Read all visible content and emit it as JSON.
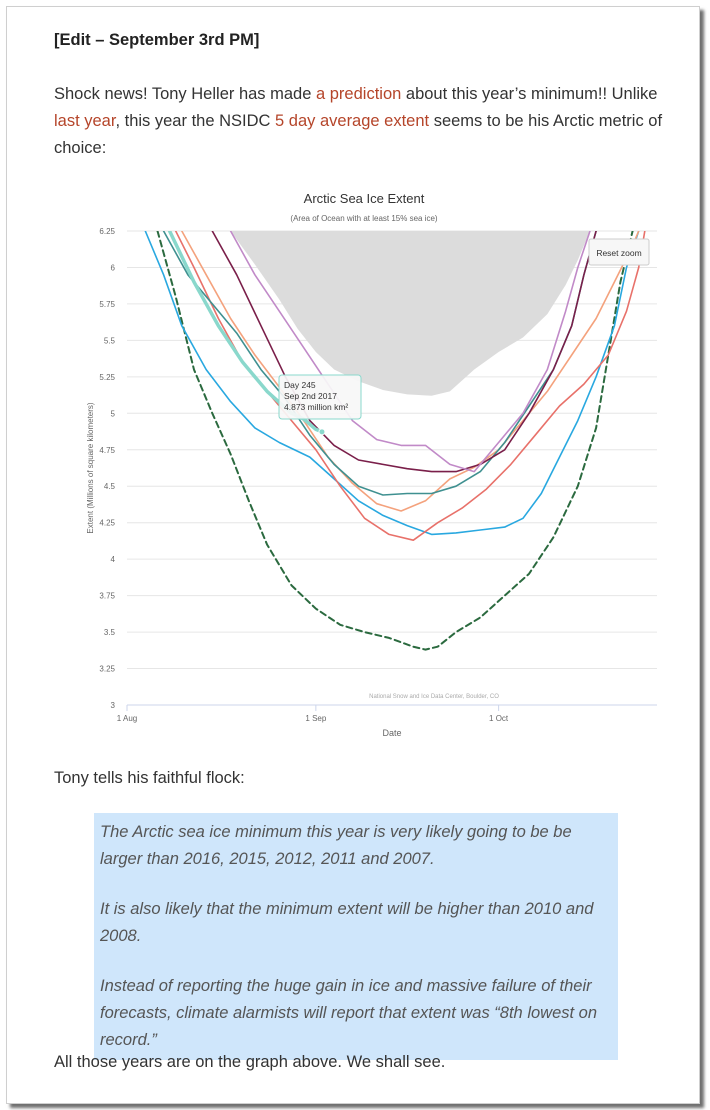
{
  "post": {
    "heading": "[Edit – September 3rd PM]",
    "p1_a": "Shock news! Tony Heller has made ",
    "p1_link1": "a prediction",
    "p1_b": " about this year’s minimum!! Unlike ",
    "p1_link2": "last year",
    "p1_c": ", this year the NSIDC ",
    "p1_link3": "5 day average extent",
    "p1_d": " seems to be his Arctic metric of choice:",
    "p2": "Tony tells his faithful flock:",
    "quote": [
      "The Arctic sea ice minimum this year is very likely going to be be larger than 2016, 2015, 2012, 2011 and 2007.",
      "It is also likely that the minimum extent will be higher than 2010 and 2008.",
      "Instead of reporting the huge gain in ice and massive failure of their forecasts, climate alarmists will report that extent was “8th lowest on record.”"
    ],
    "p3": "All those years are on the graph above. We shall see."
  },
  "colors": {
    "link": "#b5452a",
    "quote_bg": "#cfe6fb"
  },
  "chart_data": {
    "type": "line",
    "title": "Arctic Sea Ice Extent",
    "subtitle": "(Area of Ocean with at least 15% sea ice)",
    "ylabel": "Extent (Millions of square kilometers)",
    "xlabel": "Date",
    "credit": "National Snow and Ice Data Center, Boulder, CO",
    "reset_label": "Reset zoom",
    "x_ticks": [
      {
        "day": 213,
        "label": "1 Aug"
      },
      {
        "day": 244,
        "label": "1 Sep"
      },
      {
        "day": 274,
        "label": "1 Oct"
      }
    ],
    "xlim": [
      213,
      300
    ],
    "ylim": [
      3,
      6.25
    ],
    "y_ticks": [
      {
        "v": 3,
        "label": "3"
      },
      {
        "v": 3.25,
        "label": "3.25"
      },
      {
        "v": 3.5,
        "label": "3.5"
      },
      {
        "v": 3.75,
        "label": "3.75"
      },
      {
        "v": 4,
        "label": "4"
      },
      {
        "v": 4.25,
        "label": "4.25"
      },
      {
        "v": 4.5,
        "label": "4.5"
      },
      {
        "v": 4.75,
        "label": "4.75"
      },
      {
        "v": 5,
        "label": "5"
      },
      {
        "v": 5.25,
        "label": "5.25"
      },
      {
        "v": 5.5,
        "label": "5.5"
      },
      {
        "v": 5.75,
        "label": "5.75"
      },
      {
        "v": 6,
        "label": "6"
      },
      {
        "v": 6.25,
        "label": "6.25"
      }
    ],
    "band": {
      "color": "#dcdcdc",
      "upper": [
        [
          230,
          6.25
        ],
        [
          289,
          6.25
        ]
      ],
      "lower": [
        [
          230,
          6.25
        ],
        [
          234,
          6.02
        ],
        [
          238,
          5.78
        ],
        [
          241,
          5.58
        ],
        [
          244,
          5.42
        ],
        [
          247,
          5.3
        ],
        [
          251,
          5.22
        ],
        [
          255,
          5.16
        ],
        [
          259,
          5.13
        ],
        [
          263,
          5.12
        ],
        [
          266,
          5.15
        ],
        [
          270,
          5.3
        ],
        [
          274,
          5.42
        ],
        [
          278,
          5.52
        ],
        [
          282,
          5.68
        ],
        [
          285,
          5.88
        ],
        [
          287,
          6.05
        ],
        [
          289,
          6.25
        ]
      ]
    },
    "series": [
      {
        "color": "#2b6a3f",
        "dashed": true,
        "width": 2,
        "points": [
          [
            218,
            6.25
          ],
          [
            221,
            5.8
          ],
          [
            224,
            5.3
          ],
          [
            227,
            5.0
          ],
          [
            230,
            4.72
          ],
          [
            233,
            4.4
          ],
          [
            236,
            4.1
          ],
          [
            240,
            3.82
          ],
          [
            244,
            3.66
          ],
          [
            248,
            3.55
          ],
          [
            252,
            3.5
          ],
          [
            256,
            3.46
          ],
          [
            260,
            3.4
          ],
          [
            262,
            3.38
          ],
          [
            264,
            3.4
          ],
          [
            267,
            3.5
          ],
          [
            271,
            3.6
          ],
          [
            275,
            3.75
          ],
          [
            279,
            3.9
          ],
          [
            283,
            4.15
          ],
          [
            287,
            4.5
          ],
          [
            290,
            4.9
          ],
          [
            292,
            5.4
          ],
          [
            294,
            5.9
          ],
          [
            296,
            6.25
          ]
        ]
      },
      {
        "color": "#29a8e0",
        "width": 1.6,
        "points": [
          [
            216,
            6.25
          ],
          [
            219,
            5.95
          ],
          [
            222,
            5.6
          ],
          [
            226,
            5.3
          ],
          [
            230,
            5.08
          ],
          [
            234,
            4.9
          ],
          [
            238,
            4.8
          ],
          [
            243,
            4.7
          ],
          [
            247,
            4.55
          ],
          [
            251,
            4.4
          ],
          [
            255,
            4.3
          ],
          [
            259,
            4.23
          ],
          [
            263,
            4.17
          ],
          [
            267,
            4.18
          ],
          [
            271,
            4.2
          ],
          [
            275,
            4.22
          ],
          [
            278,
            4.28
          ],
          [
            281,
            4.45
          ],
          [
            284,
            4.7
          ],
          [
            287,
            4.95
          ],
          [
            290,
            5.25
          ],
          [
            293,
            5.6
          ],
          [
            295,
            6.0
          ],
          [
            297,
            6.25
          ]
        ]
      },
      {
        "color": "#e8716a",
        "width": 1.6,
        "points": [
          [
            221,
            6.25
          ],
          [
            224,
            6.0
          ],
          [
            228,
            5.65
          ],
          [
            232,
            5.35
          ],
          [
            236,
            5.15
          ],
          [
            240,
            4.95
          ],
          [
            244,
            4.75
          ],
          [
            248,
            4.5
          ],
          [
            252,
            4.28
          ],
          [
            256,
            4.17
          ],
          [
            260,
            4.13
          ],
          [
            264,
            4.25
          ],
          [
            268,
            4.35
          ],
          [
            272,
            4.48
          ],
          [
            276,
            4.65
          ],
          [
            280,
            4.85
          ],
          [
            284,
            5.05
          ],
          [
            288,
            5.2
          ],
          [
            292,
            5.4
          ],
          [
            295,
            5.7
          ],
          [
            297,
            6.0
          ],
          [
            298,
            6.25
          ]
        ]
      },
      {
        "color": "#f4a27d",
        "width": 1.6,
        "points": [
          [
            222,
            6.25
          ],
          [
            226,
            5.95
          ],
          [
            230,
            5.65
          ],
          [
            234,
            5.4
          ],
          [
            238,
            5.18
          ],
          [
            242,
            4.95
          ],
          [
            246,
            4.7
          ],
          [
            250,
            4.52
          ],
          [
            254,
            4.38
          ],
          [
            258,
            4.33
          ],
          [
            262,
            4.4
          ],
          [
            266,
            4.55
          ],
          [
            270,
            4.63
          ],
          [
            274,
            4.75
          ],
          [
            278,
            4.95
          ],
          [
            282,
            5.15
          ],
          [
            286,
            5.4
          ],
          [
            290,
            5.65
          ],
          [
            293,
            5.9
          ],
          [
            296,
            6.15
          ],
          [
            297,
            6.25
          ]
        ]
      },
      {
        "color": "#3f9090",
        "width": 1.6,
        "points": [
          [
            219,
            6.25
          ],
          [
            223,
            5.95
          ],
          [
            227,
            5.75
          ],
          [
            231,
            5.55
          ],
          [
            235,
            5.3
          ],
          [
            239,
            5.1
          ],
          [
            243,
            4.85
          ],
          [
            247,
            4.65
          ],
          [
            251,
            4.5
          ],
          [
            255,
            4.44
          ],
          [
            259,
            4.45
          ],
          [
            263,
            4.45
          ],
          [
            267,
            4.5
          ],
          [
            271,
            4.6
          ],
          [
            275,
            4.8
          ],
          [
            279,
            5.05
          ],
          [
            283,
            5.3
          ],
          [
            286,
            5.6
          ],
          [
            288,
            5.95
          ],
          [
            290,
            6.25
          ]
        ]
      },
      {
        "color": "#7a1f4a",
        "width": 1.6,
        "points": [
          [
            227,
            6.25
          ],
          [
            231,
            5.95
          ],
          [
            235,
            5.6
          ],
          [
            239,
            5.25
          ],
          [
            243,
            4.95
          ],
          [
            247,
            4.78
          ],
          [
            251,
            4.68
          ],
          [
            255,
            4.65
          ],
          [
            259,
            4.62
          ],
          [
            263,
            4.6
          ],
          [
            267,
            4.6
          ],
          [
            271,
            4.65
          ],
          [
            275,
            4.75
          ],
          [
            279,
            5.0
          ],
          [
            283,
            5.3
          ],
          [
            286,
            5.6
          ],
          [
            288,
            5.95
          ],
          [
            290,
            6.25
          ]
        ]
      },
      {
        "color": "#c18ac8",
        "width": 1.6,
        "points": [
          [
            230,
            6.25
          ],
          [
            234,
            5.95
          ],
          [
            238,
            5.7
          ],
          [
            242,
            5.45
          ],
          [
            246,
            5.2
          ],
          [
            250,
            4.95
          ],
          [
            254,
            4.82
          ],
          [
            258,
            4.78
          ],
          [
            262,
            4.78
          ],
          [
            266,
            4.65
          ],
          [
            270,
            4.6
          ],
          [
            274,
            4.8
          ],
          [
            278,
            5.0
          ],
          [
            282,
            5.3
          ],
          [
            285,
            5.7
          ],
          [
            287,
            6.0
          ],
          [
            289,
            6.25
          ]
        ]
      },
      {
        "color": "#8ad8cc",
        "width": 3.5,
        "points": [
          [
            220,
            6.25
          ],
          [
            224,
            5.9
          ],
          [
            228,
            5.6
          ],
          [
            232,
            5.35
          ],
          [
            236,
            5.15
          ],
          [
            240,
            5.0
          ],
          [
            242,
            4.96
          ],
          [
            244,
            4.89
          ],
          [
            245,
            4.873
          ]
        ]
      }
    ],
    "tooltip": {
      "day": "Day 245",
      "date": "Sep 2nd 2017",
      "value": "4.873 million km²"
    }
  }
}
